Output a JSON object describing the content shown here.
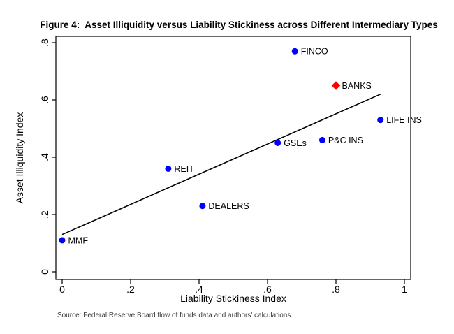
{
  "chart_data": {
    "type": "scatter",
    "title": "Figure 4:  Asset Illiquidity versus Liability Stickiness across Different Intermediary Types",
    "xlabel": "Liability Stickiness Index",
    "ylabel": "Asset Illiquidity Index",
    "xlim": [
      0,
      1
    ],
    "ylim": [
      0,
      0.8
    ],
    "x_ticks": [
      0,
      0.2,
      0.4,
      0.6,
      0.8,
      1
    ],
    "x_tick_labels": [
      "0",
      ".2",
      ".4",
      ".6",
      ".8",
      "1"
    ],
    "y_ticks": [
      0,
      0.2,
      0.4,
      0.6,
      0.8
    ],
    "y_tick_labels": [
      "0",
      ".2",
      ".4",
      ".6",
      ".8"
    ],
    "grid": false,
    "legend": "none",
    "series": [
      {
        "name": "intermediaries",
        "marker": "circle",
        "color": "#0000ff",
        "points": [
          {
            "label": "MMF",
            "x": 0.0,
            "y": 0.11
          },
          {
            "label": "REIT",
            "x": 0.31,
            "y": 0.36
          },
          {
            "label": "DEALERS",
            "x": 0.41,
            "y": 0.23
          },
          {
            "label": "GSEs",
            "x": 0.63,
            "y": 0.45
          },
          {
            "label": "P&C INS",
            "x": 0.76,
            "y": 0.46
          },
          {
            "label": "FINCO",
            "x": 0.68,
            "y": 0.77
          },
          {
            "label": "LIFE INS",
            "x": 0.93,
            "y": 0.53
          }
        ]
      },
      {
        "name": "banks-highlight",
        "marker": "diamond",
        "color": "#ff0000",
        "points": [
          {
            "label": "BANKS",
            "x": 0.8,
            "y": 0.65
          }
        ]
      }
    ],
    "fit_line": {
      "x1": 0.0,
      "y1": 0.13,
      "x2": 0.93,
      "y2": 0.62,
      "color": "#000000"
    }
  },
  "source_note": "Source: Federal Reserve Board flow of funds data and authors' calculations.",
  "colors": {
    "background": "#ffffff",
    "axis": "#000000",
    "point": "#0000ff",
    "highlight": "#ff0000"
  }
}
